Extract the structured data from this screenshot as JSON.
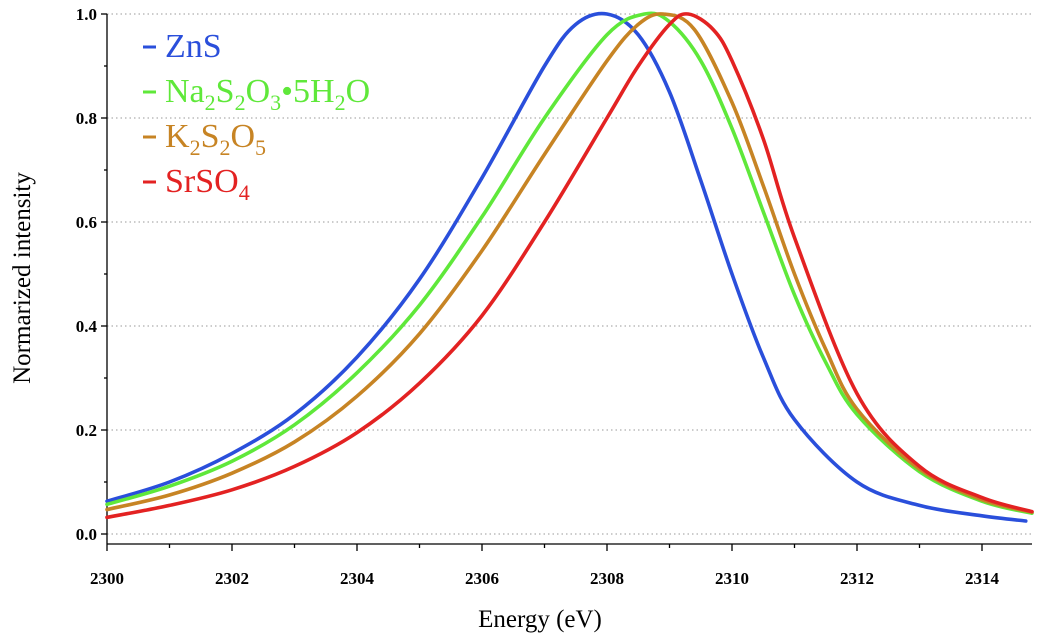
{
  "chart_data": {
    "type": "line",
    "title": "",
    "xlabel": "Energy (eV)",
    "ylabel": "Normarized intensity",
    "xlim": [
      2300,
      2314.8
    ],
    "ylim": [
      0,
      1.0
    ],
    "xticks": [
      2300,
      2302,
      2304,
      2306,
      2308,
      2310,
      2312,
      2314
    ],
    "xtick_labels": [
      "2300",
      "2302",
      "2304",
      "2306",
      "2308",
      "2310",
      "2312",
      "2314"
    ],
    "yticks": [
      0.0,
      0.2,
      0.4,
      0.6,
      0.8,
      1.0
    ],
    "ytick_labels": [
      "0.0",
      "0.2",
      "0.4",
      "0.6",
      "0.8",
      "1.0"
    ],
    "grid": "horizontal dotted",
    "legend_position": "top-left",
    "series": [
      {
        "name": "ZnS",
        "legend_parts": [
          {
            "t": "ZnS"
          }
        ],
        "color": "#2a4fdb",
        "x": [
          2300,
          2301,
          2302,
          2303,
          2304,
          2305,
          2306,
          2307,
          2307.5,
          2308,
          2308.5,
          2309,
          2309.5,
          2310,
          2310.5,
          2311,
          2312,
          2313,
          2314,
          2314.7
        ],
        "y": [
          0.063,
          0.1,
          0.155,
          0.23,
          0.34,
          0.49,
          0.685,
          0.9,
          0.98,
          1.0,
          0.96,
          0.85,
          0.68,
          0.5,
          0.34,
          0.22,
          0.1,
          0.055,
          0.035,
          0.025
        ]
      },
      {
        "name": "Na2S2O3•5H2O",
        "legend_parts": [
          {
            "t": "Na"
          },
          {
            "t": "2",
            "sub": true
          },
          {
            "t": "S"
          },
          {
            "t": "2",
            "sub": true
          },
          {
            "t": "O"
          },
          {
            "t": "3",
            "sub": true
          },
          {
            "t": "•5H"
          },
          {
            "t": "2",
            "sub": true
          },
          {
            "t": "O"
          }
        ],
        "color": "#5fe83a",
        "x": [
          2300,
          2301,
          2302,
          2303,
          2304,
          2305,
          2306,
          2307,
          2308,
          2308.6,
          2309,
          2309.5,
          2310,
          2310.5,
          2311,
          2311.5,
          2312,
          2313,
          2314,
          2314.8
        ],
        "y": [
          0.057,
          0.092,
          0.14,
          0.21,
          0.31,
          0.44,
          0.61,
          0.8,
          0.96,
          1.0,
          0.985,
          0.91,
          0.78,
          0.62,
          0.46,
          0.33,
          0.23,
          0.12,
          0.063,
          0.04
        ]
      },
      {
        "name": "K2S2O5",
        "legend_parts": [
          {
            "t": "K"
          },
          {
            "t": "2",
            "sub": true
          },
          {
            "t": "S"
          },
          {
            "t": "2",
            "sub": true
          },
          {
            "t": "O"
          },
          {
            "t": "5",
            "sub": true
          }
        ],
        "color": "#c78424",
        "x": [
          2300,
          2301,
          2302,
          2303,
          2304,
          2305,
          2306,
          2307,
          2308,
          2308.5,
          2308.9,
          2309.4,
          2310,
          2310.5,
          2311,
          2311.5,
          2312,
          2313,
          2314,
          2314.8
        ],
        "y": [
          0.047,
          0.075,
          0.117,
          0.177,
          0.265,
          0.385,
          0.545,
          0.73,
          0.91,
          0.98,
          1.0,
          0.97,
          0.83,
          0.67,
          0.5,
          0.355,
          0.24,
          0.125,
          0.066,
          0.042
        ]
      },
      {
        "name": "SrSO4",
        "legend_parts": [
          {
            "t": "SrSO"
          },
          {
            "t": "4",
            "sub": true
          }
        ],
        "color": "#e32222",
        "x": [
          2300,
          2301,
          2302,
          2303,
          2304,
          2305,
          2306,
          2307,
          2308,
          2308.5,
          2309,
          2309.3,
          2309.7,
          2310,
          2310.5,
          2311,
          2312,
          2313,
          2314,
          2314.8
        ],
        "y": [
          0.032,
          0.055,
          0.085,
          0.13,
          0.195,
          0.29,
          0.42,
          0.6,
          0.8,
          0.9,
          0.98,
          1.0,
          0.97,
          0.91,
          0.76,
          0.57,
          0.27,
          0.13,
          0.07,
          0.043
        ]
      }
    ]
  }
}
